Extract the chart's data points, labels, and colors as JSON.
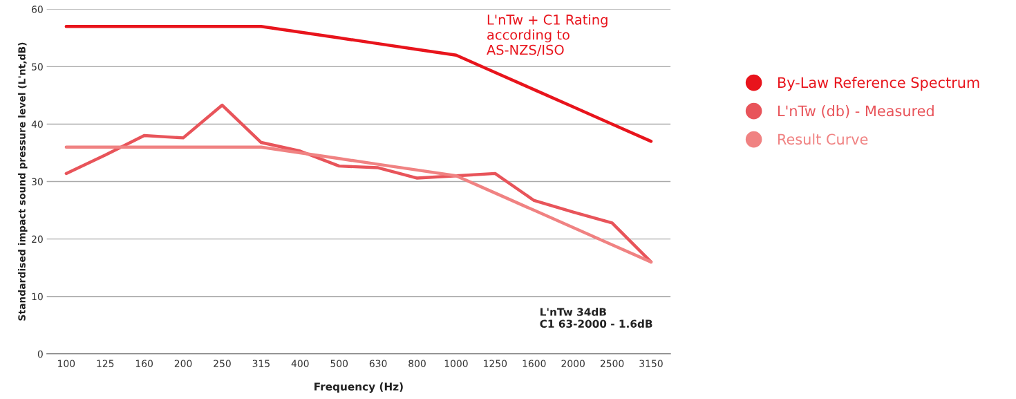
{
  "chart_data": {
    "type": "line",
    "xlabel": "Frequency (Hz)",
    "ylabel": "Standardised impact sound pressure level (L'nt,dB)",
    "categories": [
      "100",
      "125",
      "160",
      "200",
      "250",
      "315",
      "400",
      "500",
      "630",
      "800",
      "1000",
      "1250",
      "1600",
      "2000",
      "2500",
      "3150"
    ],
    "series": [
      {
        "name": "By-Law Reference Spectrum",
        "color": "#e8141c",
        "values": [
          57,
          57,
          57,
          57,
          57,
          57,
          56,
          55,
          54,
          53,
          52,
          49,
          46,
          43,
          40,
          37
        ]
      },
      {
        "name": "L'nTw (db) - Measured",
        "color": "#e8545a",
        "values": [
          31.4,
          34.6,
          38,
          37.6,
          43.3,
          36.8,
          35.3,
          32.7,
          32.4,
          30.6,
          31,
          31.4,
          26.7,
          24.7,
          22.8,
          16
        ]
      },
      {
        "name": "Result Curve",
        "color": "#f08282",
        "values": [
          36,
          36,
          36,
          36,
          36,
          36,
          35,
          34,
          33,
          32,
          31,
          28,
          25,
          22,
          19,
          16
        ]
      }
    ],
    "ylim": [
      0,
      60
    ],
    "yticks": [
      0,
      10,
      20,
      30,
      40,
      50,
      60
    ],
    "grid": "y",
    "legend": "right",
    "marker": "none",
    "line_style": "solid",
    "annotations": [
      "L'nTw + C1 Rating\naccording to\nAS-NZS/ISO",
      "L'nTw 34dB\nC1 63-2000 - 1.6dB"
    ]
  }
}
